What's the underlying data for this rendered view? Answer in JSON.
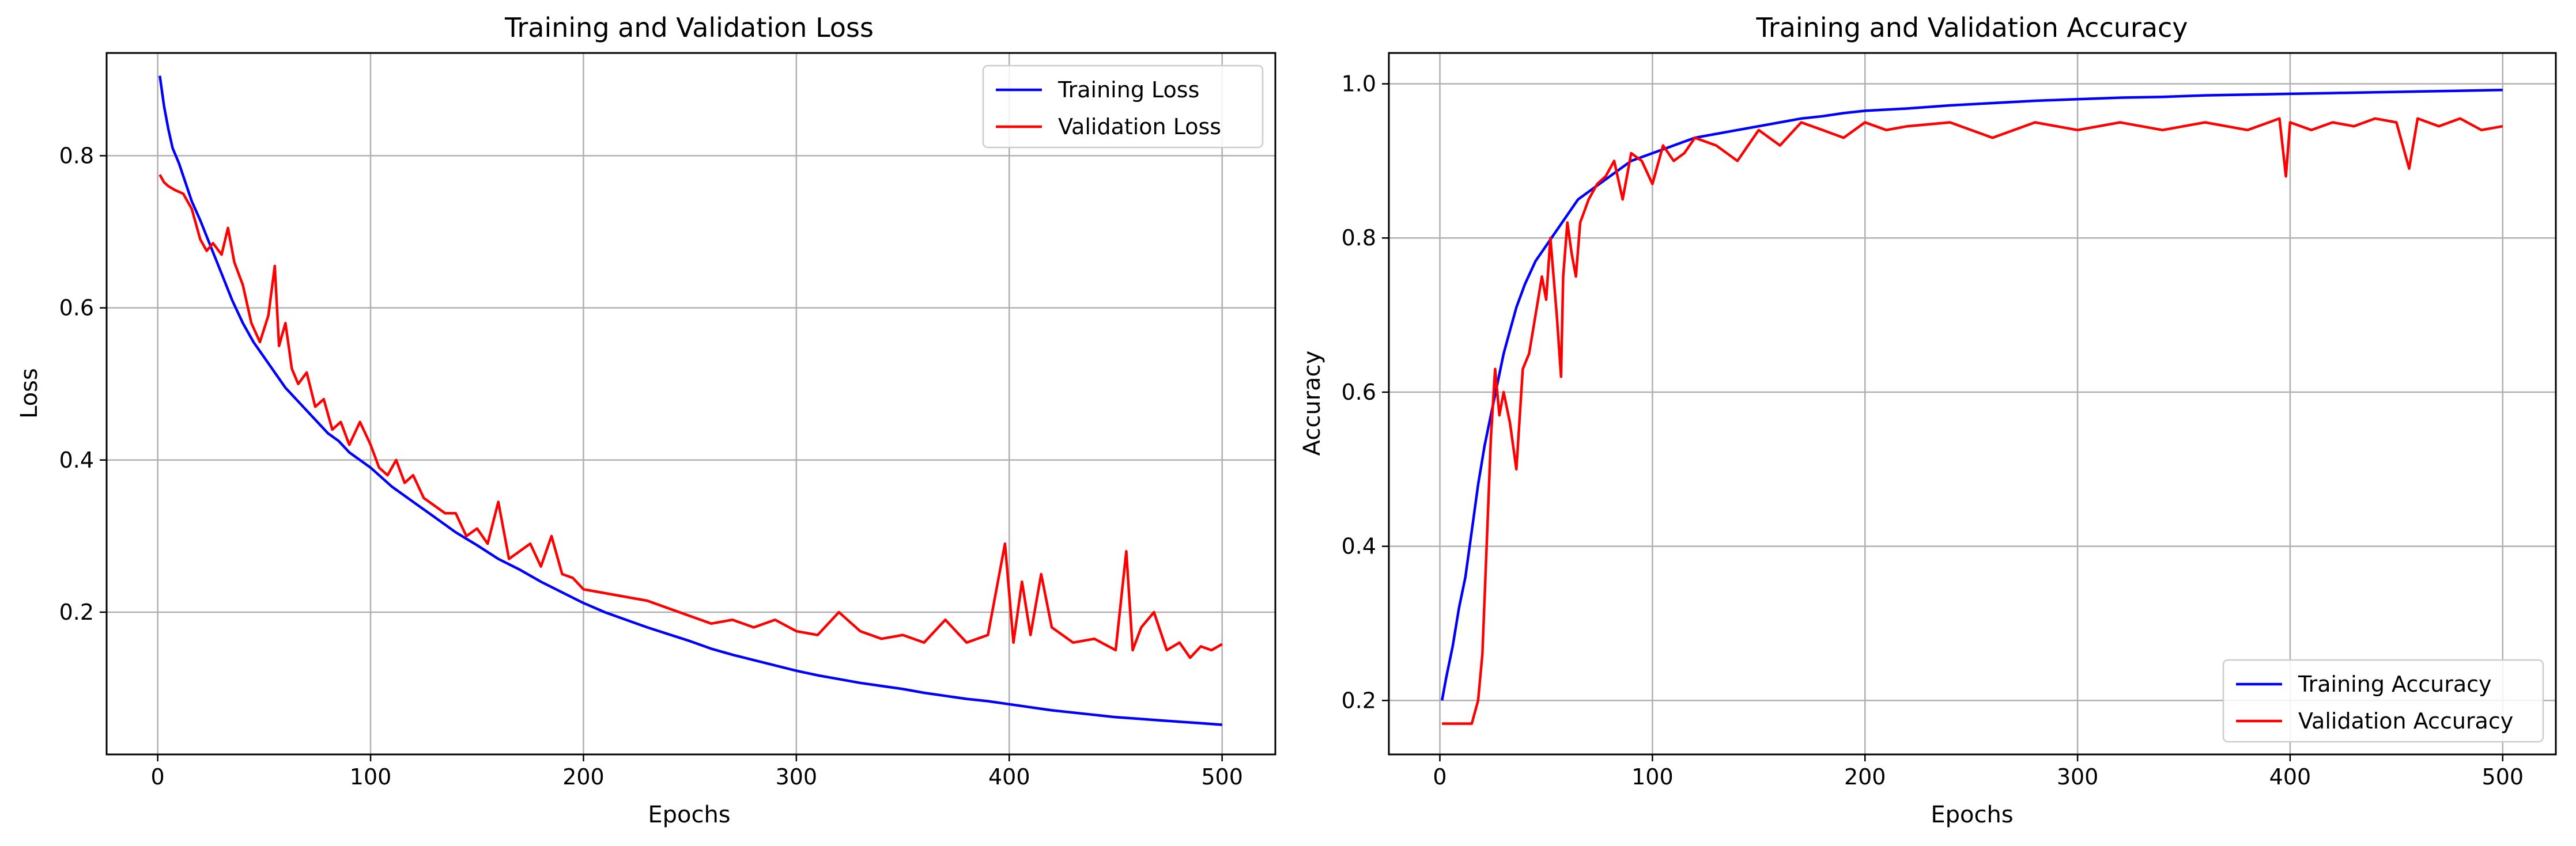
{
  "chart_data": [
    {
      "type": "line",
      "title": "Training and Validation Loss",
      "xlabel": "Epochs",
      "ylabel": "Loss",
      "xlim": [
        -24,
        525
      ],
      "ylim": [
        0.013,
        0.935
      ],
      "x_ticks": [
        0,
        100,
        200,
        300,
        400,
        500
      ],
      "y_ticks": [
        0.2,
        0.4,
        0.6,
        0.8
      ],
      "x_tick_labels": [
        "0",
        "100",
        "200",
        "300",
        "400",
        "500"
      ],
      "y_tick_labels": [
        "0.2",
        "0.4",
        "0.6",
        "0.8"
      ],
      "grid": true,
      "legend_position": "top-right",
      "series": [
        {
          "name": "Training Loss",
          "color": "#0000ff",
          "x": [
            1,
            2,
            3,
            5,
            7,
            10,
            13,
            16,
            20,
            25,
            30,
            35,
            40,
            45,
            50,
            55,
            60,
            65,
            70,
            75,
            80,
            85,
            90,
            95,
            100,
            110,
            120,
            130,
            140,
            150,
            160,
            170,
            180,
            190,
            200,
            210,
            220,
            230,
            240,
            250,
            260,
            270,
            280,
            290,
            300,
            310,
            320,
            330,
            340,
            350,
            360,
            370,
            380,
            390,
            400,
            410,
            420,
            430,
            440,
            450,
            460,
            470,
            480,
            490,
            500
          ],
          "y": [
            0.905,
            0.885,
            0.865,
            0.835,
            0.81,
            0.79,
            0.765,
            0.74,
            0.715,
            0.68,
            0.645,
            0.61,
            0.58,
            0.555,
            0.535,
            0.515,
            0.495,
            0.48,
            0.465,
            0.45,
            0.435,
            0.425,
            0.41,
            0.4,
            0.39,
            0.365,
            0.345,
            0.325,
            0.305,
            0.288,
            0.27,
            0.256,
            0.24,
            0.226,
            0.212,
            0.2,
            0.19,
            0.18,
            0.171,
            0.162,
            0.152,
            0.144,
            0.137,
            0.13,
            0.123,
            0.117,
            0.112,
            0.107,
            0.103,
            0.099,
            0.094,
            0.09,
            0.086,
            0.083,
            0.079,
            0.075,
            0.071,
            0.068,
            0.065,
            0.062,
            0.06,
            0.058,
            0.056,
            0.054,
            0.052
          ]
        },
        {
          "name": "Validation Loss",
          "color": "#ff0000",
          "x": [
            1,
            3,
            5,
            8,
            12,
            16,
            20,
            23,
            26,
            30,
            33,
            36,
            40,
            44,
            48,
            52,
            55,
            57,
            60,
            63,
            66,
            70,
            74,
            78,
            82,
            86,
            90,
            95,
            100,
            104,
            108,
            112,
            116,
            120,
            125,
            130,
            135,
            140,
            145,
            150,
            155,
            160,
            165,
            170,
            175,
            180,
            185,
            190,
            195,
            200,
            210,
            220,
            230,
            240,
            250,
            260,
            270,
            280,
            290,
            300,
            310,
            320,
            330,
            340,
            350,
            360,
            370,
            380,
            390,
            398,
            402,
            406,
            410,
            415,
            420,
            430,
            440,
            450,
            455,
            458,
            462,
            468,
            474,
            480,
            485,
            490,
            495,
            500
          ],
          "y": [
            0.775,
            0.765,
            0.76,
            0.755,
            0.75,
            0.73,
            0.69,
            0.675,
            0.685,
            0.67,
            0.705,
            0.66,
            0.63,
            0.58,
            0.555,
            0.59,
            0.655,
            0.55,
            0.58,
            0.52,
            0.5,
            0.515,
            0.47,
            0.48,
            0.44,
            0.45,
            0.42,
            0.45,
            0.42,
            0.39,
            0.38,
            0.4,
            0.37,
            0.38,
            0.35,
            0.34,
            0.33,
            0.33,
            0.3,
            0.31,
            0.29,
            0.345,
            0.27,
            0.28,
            0.29,
            0.26,
            0.3,
            0.25,
            0.245,
            0.23,
            0.225,
            0.22,
            0.215,
            0.205,
            0.195,
            0.185,
            0.19,
            0.18,
            0.19,
            0.175,
            0.17,
            0.2,
            0.175,
            0.165,
            0.17,
            0.16,
            0.19,
            0.16,
            0.17,
            0.29,
            0.16,
            0.24,
            0.17,
            0.25,
            0.18,
            0.16,
            0.165,
            0.15,
            0.28,
            0.15,
            0.18,
            0.2,
            0.15,
            0.16,
            0.14,
            0.155,
            0.15,
            0.158
          ]
        }
      ]
    },
    {
      "type": "line",
      "title": "Training and Validation Accuracy",
      "xlabel": "Epochs",
      "ylabel": "Accuracy",
      "xlim": [
        -24,
        525
      ],
      "ylim": [
        0.13,
        1.04
      ],
      "x_ticks": [
        0,
        100,
        200,
        300,
        400,
        500
      ],
      "y_ticks": [
        0.2,
        0.4,
        0.6,
        0.8,
        1.0
      ],
      "x_tick_labels": [
        "0",
        "100",
        "200",
        "300",
        "400",
        "500"
      ],
      "y_tick_labels": [
        "0.2",
        "0.4",
        "0.6",
        "0.8",
        "1.0"
      ],
      "grid": true,
      "legend_position": "bottom-right",
      "series": [
        {
          "name": "Training Accuracy",
          "color": "#0000ff",
          "x": [
            1,
            3,
            6,
            9,
            12,
            15,
            18,
            21,
            24,
            27,
            30,
            33,
            36,
            40,
            45,
            50,
            55,
            60,
            65,
            70,
            75,
            80,
            85,
            90,
            95,
            100,
            110,
            120,
            130,
            140,
            150,
            160,
            170,
            180,
            190,
            200,
            220,
            240,
            260,
            280,
            300,
            320,
            340,
            360,
            380,
            400,
            420,
            440,
            460,
            480,
            500
          ],
          "y": [
            0.2,
            0.23,
            0.27,
            0.32,
            0.36,
            0.42,
            0.48,
            0.53,
            0.57,
            0.61,
            0.65,
            0.68,
            0.71,
            0.74,
            0.77,
            0.79,
            0.81,
            0.83,
            0.85,
            0.86,
            0.87,
            0.88,
            0.89,
            0.9,
            0.905,
            0.91,
            0.92,
            0.93,
            0.935,
            0.94,
            0.945,
            0.95,
            0.955,
            0.958,
            0.962,
            0.965,
            0.968,
            0.972,
            0.975,
            0.978,
            0.98,
            0.982,
            0.983,
            0.985,
            0.986,
            0.987,
            0.988,
            0.989,
            0.99,
            0.991,
            0.992
          ]
        },
        {
          "name": "Validation Accuracy",
          "color": "#ff0000",
          "x": [
            1,
            5,
            10,
            15,
            18,
            20,
            22,
            24,
            26,
            28,
            30,
            33,
            36,
            39,
            42,
            45,
            48,
            50,
            52,
            55,
            57,
            58,
            60,
            62,
            64,
            66,
            70,
            74,
            78,
            82,
            86,
            90,
            95,
            100,
            105,
            110,
            115,
            120,
            130,
            140,
            150,
            155,
            160,
            170,
            180,
            190,
            200,
            210,
            220,
            240,
            260,
            280,
            300,
            320,
            340,
            360,
            380,
            395,
            398,
            400,
            410,
            420,
            430,
            440,
            450,
            456,
            460,
            470,
            480,
            490,
            500
          ],
          "y": [
            0.17,
            0.17,
            0.17,
            0.17,
            0.2,
            0.26,
            0.4,
            0.54,
            0.63,
            0.57,
            0.6,
            0.56,
            0.5,
            0.63,
            0.65,
            0.7,
            0.75,
            0.72,
            0.8,
            0.7,
            0.62,
            0.75,
            0.82,
            0.78,
            0.75,
            0.82,
            0.85,
            0.87,
            0.88,
            0.9,
            0.85,
            0.91,
            0.9,
            0.87,
            0.92,
            0.9,
            0.91,
            0.93,
            0.92,
            0.9,
            0.94,
            0.93,
            0.92,
            0.95,
            0.94,
            0.93,
            0.95,
            0.94,
            0.945,
            0.95,
            0.93,
            0.95,
            0.94,
            0.95,
            0.94,
            0.95,
            0.94,
            0.955,
            0.88,
            0.95,
            0.94,
            0.95,
            0.945,
            0.955,
            0.95,
            0.89,
            0.955,
            0.945,
            0.955,
            0.94,
            0.945
          ]
        }
      ]
    }
  ]
}
